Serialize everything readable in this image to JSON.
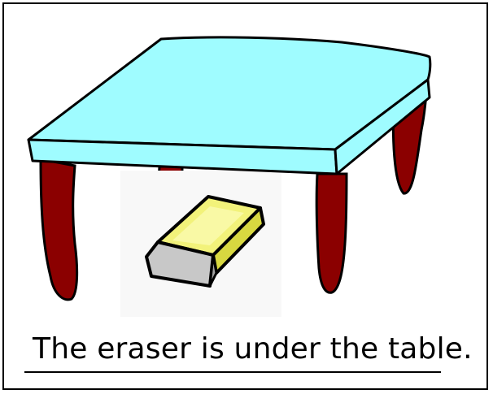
{
  "worksheet": {
    "sentence": "The eraser is under the table."
  },
  "illustration": {
    "objects": [
      "table",
      "eraser"
    ],
    "relation": "under",
    "colors": {
      "tabletop": "#9ffcff",
      "table_legs": "#8b0000",
      "outline": "#000000",
      "eraser_body": "#f2f27a",
      "eraser_band": "#c8c8c8"
    }
  }
}
